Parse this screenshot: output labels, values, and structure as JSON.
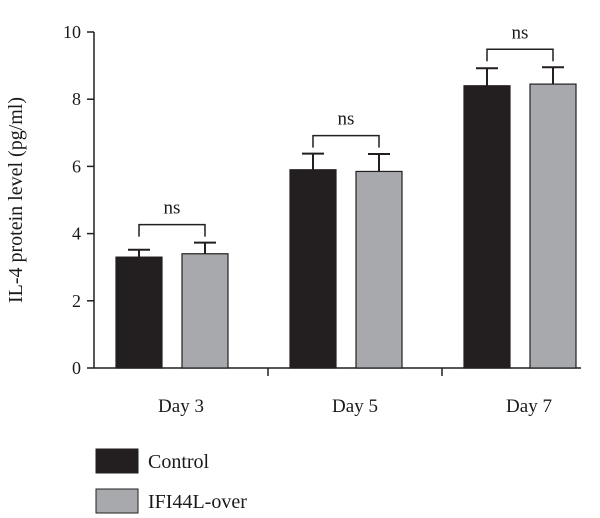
{
  "chart_data": {
    "type": "bar",
    "categories": [
      "Day 3",
      "Day 5",
      "Day 7"
    ],
    "series": [
      {
        "name": "Control",
        "values": [
          3.3,
          5.9,
          8.4
        ],
        "errors": [
          0.22,
          0.48,
          0.52
        ],
        "color": "#231f20"
      },
      {
        "name": "IFI44L-over",
        "values": [
          3.4,
          5.85,
          8.45
        ],
        "errors": [
          0.33,
          0.52,
          0.5
        ],
        "color": "#a7a9ac"
      }
    ],
    "ylabel": "IL-4 protein level (pg/ml)",
    "ylim": [
      0,
      10
    ],
    "yticks": [
      "0",
      "2",
      "4",
      "6",
      "8",
      "10"
    ],
    "significance": [
      "ns",
      "ns",
      "ns"
    ],
    "legend_position": "bottom-left",
    "grid": false
  }
}
